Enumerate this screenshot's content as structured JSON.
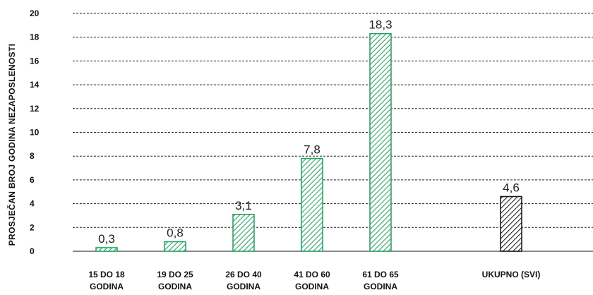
{
  "chart_data": {
    "type": "bar",
    "ylabel": "PROSJEČAN BROJ GODINA NEZAPOSLENOSTI",
    "xlabel": "",
    "ylim": [
      0,
      20
    ],
    "yticks": [
      0,
      2,
      4,
      6,
      8,
      10,
      12,
      14,
      16,
      18,
      20
    ],
    "grid": true,
    "categories": [
      [
        "15 DO 18",
        "GODINA"
      ],
      [
        "19 DO 25",
        "GODINA"
      ],
      [
        "26 DO 40",
        "GODINA"
      ],
      [
        "41 DO 60",
        "GODINA"
      ],
      [
        "61 DO 65",
        "GODINA"
      ],
      [
        "UKUPNO (SVI)"
      ]
    ],
    "values": [
      0.3,
      0.8,
      3.1,
      7.8,
      18.3,
      4.6
    ],
    "value_labels": [
      "0,3",
      "0,8",
      "3,1",
      "7,8",
      "18,3",
      "4,6"
    ],
    "colors": [
      "#1aa35a",
      "#1aa35a",
      "#1aa35a",
      "#1aa35a",
      "#1aa35a",
      "#111111"
    ]
  }
}
